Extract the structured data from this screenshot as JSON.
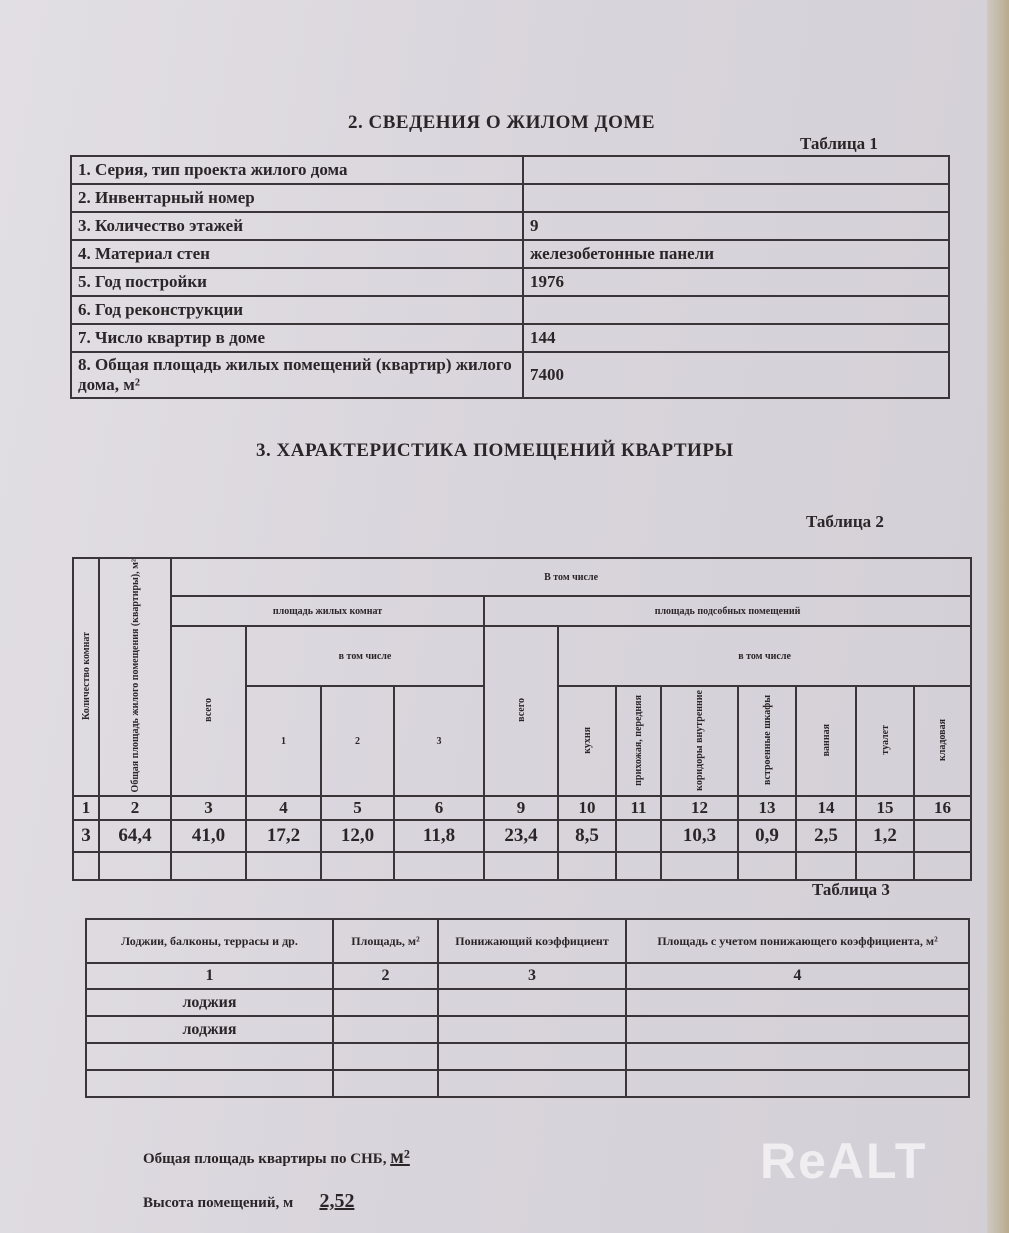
{
  "section2_title": "2. СВЕДЕНИЯ О ЖИЛОМ ДОМЕ",
  "table1": {
    "label": "Таблица 1",
    "rows": [
      {
        "label": "1. Серия, тип проекта жилого дома",
        "value": ""
      },
      {
        "label": "2. Инвентарный номер",
        "value": ""
      },
      {
        "label": "3. Количество этажей",
        "value": "9"
      },
      {
        "label": "4. Материал стен",
        "value": "железобетонные панели"
      },
      {
        "label": "5. Год постройки",
        "value": "1976"
      },
      {
        "label": "6. Год реконструкции",
        "value": ""
      },
      {
        "label": "7. Число квартир в доме",
        "value": "144"
      },
      {
        "label": "8. Общая площадь жилых помещений (квартир) жилого дома, м²",
        "value": "7400"
      }
    ]
  },
  "section3_title": "3. ХАРАКТЕРИСТИКА ПОМЕЩЕНИЙ КВАРТИРЫ",
  "table2": {
    "label": "Таблица 2",
    "h_rooms_count": "Количество комнат",
    "h_total_area": "Общая площадь жилого помещения (квартиры), м²",
    "h_including": "В том числе",
    "h_living": "площадь жилых комнат",
    "h_aux": "площадь подсобных помещений",
    "h_incl_small": "в том числе",
    "h_total": "всего",
    "h_room1": "1",
    "h_room2": "2",
    "h_room3": "3",
    "h_kitchen": "кухня",
    "h_hall": "прихожая, передняя",
    "h_corridors": "коридоры внутренние",
    "h_closets": "встроенные шкафы",
    "h_bath": "ванная",
    "h_toilet": "туалет",
    "h_storage": "кладовая",
    "col_numbers": [
      "1",
      "2",
      "3",
      "4",
      "5",
      "6",
      "9",
      "10",
      "11",
      "12",
      "13",
      "14",
      "15",
      "16"
    ],
    "values": [
      "3",
      "64,4",
      "41,0",
      "17,2",
      "12,0",
      "11,8",
      "23,4",
      "8,5",
      "",
      "10,3",
      "0,9",
      "2,5",
      "1,2",
      ""
    ]
  },
  "table3": {
    "label": "Таблица 3",
    "headers": [
      "Лоджии, балконы, террасы и др.",
      "Площадь, м²",
      "Понижающий коэффициент",
      "Площадь с учетом понижающего коэффициента, м²"
    ],
    "col_numbers": [
      "1",
      "2",
      "3",
      "4"
    ],
    "rows": [
      [
        "лоджия",
        "",
        "",
        ""
      ],
      [
        "лоджия",
        "",
        "",
        ""
      ],
      [
        "",
        "",
        "",
        ""
      ],
      [
        "",
        "",
        "",
        ""
      ]
    ]
  },
  "footer": {
    "total_area_label": "Общая площадь квартиры по СНБ,",
    "total_area_unit": "м²",
    "height_label": "Высота помещений, м",
    "height_value": "2,52"
  },
  "watermark": "REALT"
}
